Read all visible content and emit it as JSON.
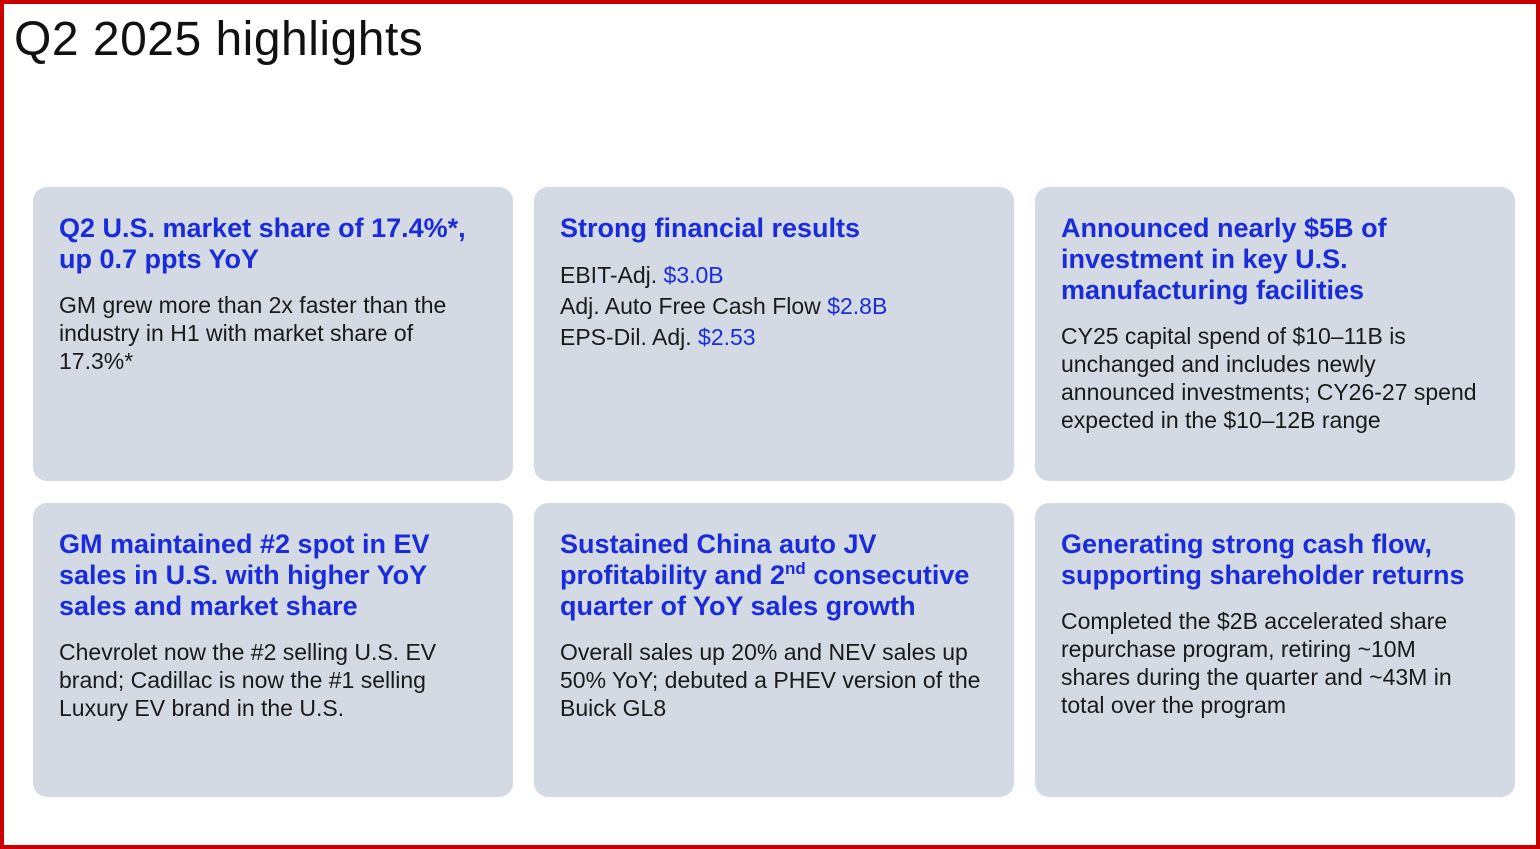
{
  "title": "Q2 2025 highlights",
  "colors": {
    "accent": "#1a2bdc",
    "card_bg": "#d3dae3",
    "frame": "#cc0000"
  },
  "cards": [
    {
      "heading": "Q2 U.S. market share of 17.4%*, up 0.7 ppts YoY",
      "body": "GM grew more than 2x faster than the industry in H1 with market share of 17.3%*"
    },
    {
      "heading": "Strong financial results",
      "metrics": [
        {
          "label": "EBIT-Adj.",
          "value": "$3.0B"
        },
        {
          "label": "Adj. Auto Free Cash Flow",
          "value": "$2.8B"
        },
        {
          "label": "EPS-Dil. Adj.",
          "value": "$2.53"
        }
      ]
    },
    {
      "heading": "Announced nearly $5B of investment in key U.S. manufacturing facilities",
      "body": "CY25 capital spend of $10–11B is unchanged and includes newly announced investments; CY26-27 spend expected in the $10–12B range"
    },
    {
      "heading": "GM maintained #2 spot in EV sales in U.S. with higher YoY sales and market share",
      "body": "Chevrolet now the #2 selling U.S. EV brand; Cadillac is now the #1 selling Luxury EV brand in the U.S."
    },
    {
      "heading_pre": "Sustained China auto JV profitability and 2",
      "heading_sup": "nd",
      "heading_post": " consecutive quarter of YoY sales growth",
      "body": "Overall sales up 20% and NEV sales up 50% YoY; debuted a PHEV version of the Buick GL8"
    },
    {
      "heading": "Generating strong cash flow, supporting shareholder returns",
      "body": "Completed the $2B accelerated share repurchase program, retiring ~10M shares during the quarter and ~43M in total over the program"
    }
  ]
}
